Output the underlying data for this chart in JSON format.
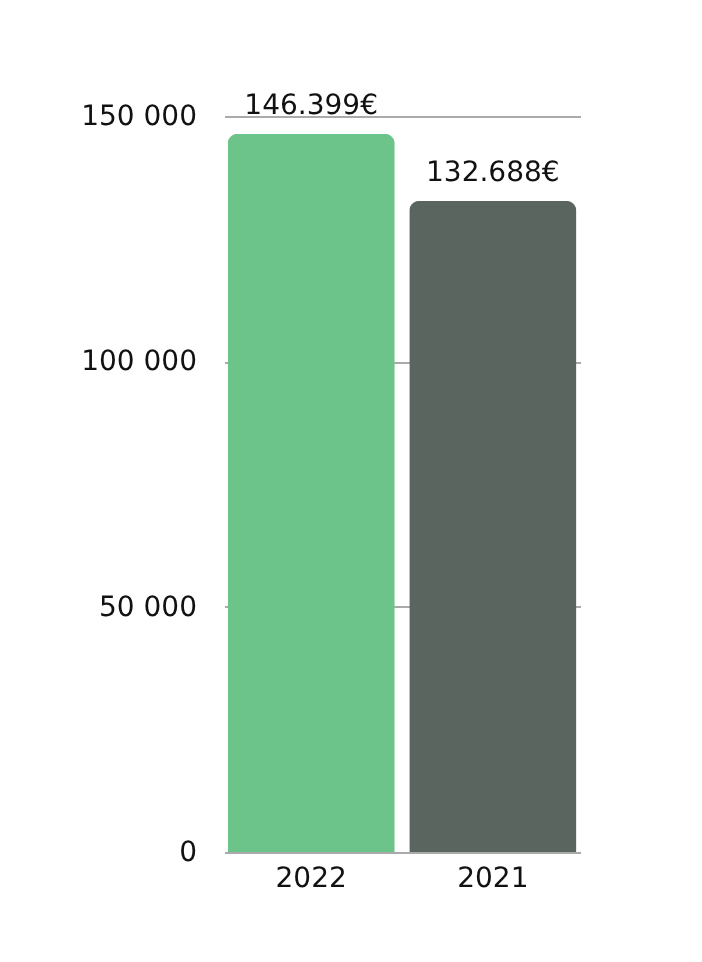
{
  "chart_data": {
    "type": "bar",
    "categories": [
      "2022",
      "2021"
    ],
    "values": [
      146399,
      132688
    ],
    "colors": [
      "#6dc48b",
      "#5a655f"
    ],
    "value_labels": [
      "146.399€",
      "132.688€"
    ],
    "ylim": [
      0,
      150000
    ],
    "yticks": [
      {
        "value": 0,
        "label": "0"
      },
      {
        "value": 50000,
        "label": "50 000"
      },
      {
        "value": 100000,
        "label": "100 000"
      },
      {
        "value": 150000,
        "label": "150 000"
      }
    ],
    "grid": "y",
    "legend": false
  }
}
